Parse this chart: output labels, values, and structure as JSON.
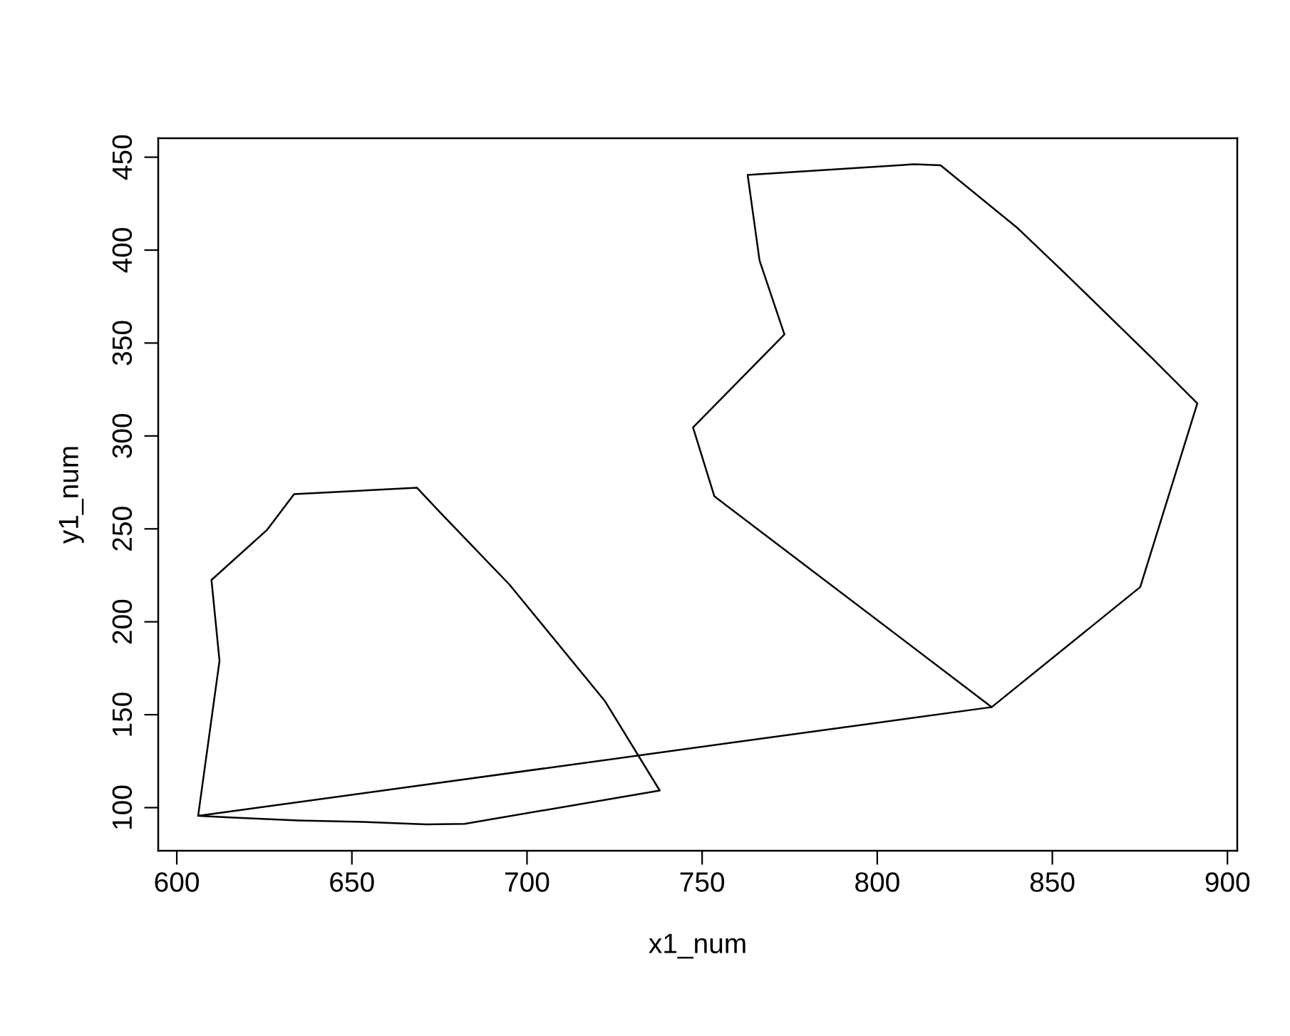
{
  "chart_data": {
    "type": "line",
    "xlabel": "x1_num",
    "ylabel": "y1_num",
    "xlim": [
      594.7,
      902.8
    ],
    "ylim": [
      76.8,
      460.2
    ],
    "xticks": [
      600,
      650,
      700,
      750,
      800,
      850,
      900
    ],
    "yticks": [
      100,
      150,
      200,
      250,
      300,
      350,
      400,
      450
    ],
    "grid": false,
    "legend": false,
    "marker": "none",
    "line_style": "solid",
    "series": [
      {
        "color": "#000000",
        "x": [
          606.1,
          612.2,
          609.9,
          625.8,
          633.5,
          668.6,
          674.6,
          695.0,
          722.3,
          737.9,
          682.2,
          671.3,
          653.0,
          634.6,
          616.3,
          606.1,
          832.7,
          875.1,
          891.4,
          879.2,
          853.4,
          839.8,
          818.1,
          810.6,
          763.0,
          766.4,
          773.5,
          747.4,
          753.5,
          832.7
        ],
        "values": [
          95.6,
          179.0,
          222.5,
          249.5,
          268.7,
          272.1,
          260.0,
          220.0,
          157.2,
          109.2,
          91.3,
          91.0,
          92.3,
          93.1,
          94.6,
          95.6,
          154.1,
          218.7,
          317.5,
          340.5,
          387.9,
          412.3,
          445.6,
          446.2,
          440.5,
          394.4,
          354.6,
          304.6,
          267.5,
          154.1
        ]
      }
    ]
  }
}
